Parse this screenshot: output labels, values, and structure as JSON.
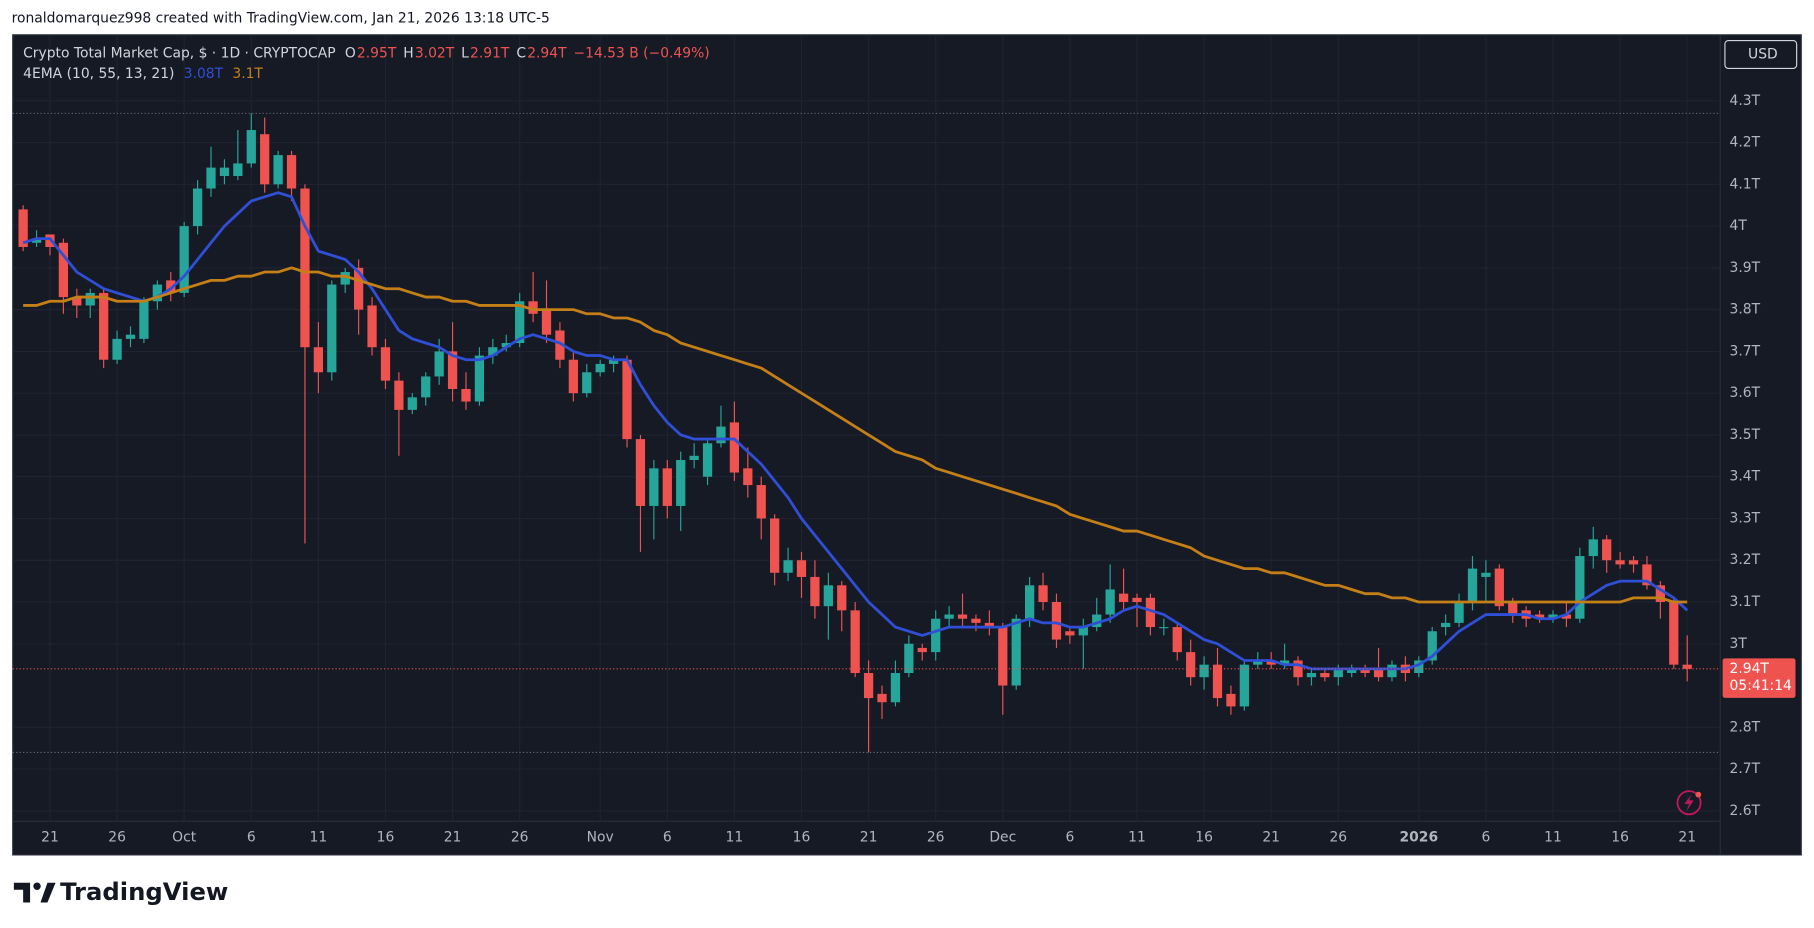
{
  "attribution": "ronaldomarquez998 created with TradingView.com, Jan 21, 2026 13:18 UTC-5",
  "footer_brand": "TradingView",
  "chart_data": {
    "type": "candlestick",
    "symbol": "Crypto Total Market Cap, $ · 1D · CRYPTOCAP",
    "ohlc_legend": [
      {
        "key": "O",
        "value": "2.95T"
      },
      {
        "key": "H",
        "value": "3.02T"
      },
      {
        "key": "L",
        "value": "2.91T"
      },
      {
        "key": "C",
        "value": "2.94T"
      }
    ],
    "change": "−14.53 B (−0.49%)",
    "currency": "USD",
    "last_price_label": "2.94T",
    "countdown": "05:41:14",
    "up_color": "#26a69a",
    "down_color": "#ef5350",
    "grid": true,
    "ylim": [
      2.575,
      4.458
    ],
    "yticks": [
      {
        "value": 2.6,
        "label": "2.6T"
      },
      {
        "value": 2.7,
        "label": "2.7T"
      },
      {
        "value": 2.8,
        "label": "2.8T"
      },
      {
        "value": 3,
        "label": "3T"
      },
      {
        "value": 3.1,
        "label": "3.1T"
      },
      {
        "value": 3.2,
        "label": "3.2T"
      },
      {
        "value": 3.3,
        "label": "3.3T"
      },
      {
        "value": 3.4,
        "label": "3.4T"
      },
      {
        "value": 3.5,
        "label": "3.5T"
      },
      {
        "value": 3.6,
        "label": "3.6T"
      },
      {
        "value": 3.7,
        "label": "3.7T"
      },
      {
        "value": 3.8,
        "label": "3.8T"
      },
      {
        "value": 3.9,
        "label": "3.9T"
      },
      {
        "value": 4,
        "label": "4T"
      },
      {
        "value": 4.1,
        "label": "4.1T"
      },
      {
        "value": 4.2,
        "label": "4.2T"
      },
      {
        "value": 4.3,
        "label": "4.3T"
      }
    ],
    "categories": [
      null,
      null,
      "21",
      null,
      null,
      null,
      null,
      "26",
      null,
      null,
      null,
      null,
      "Oct",
      null,
      null,
      null,
      null,
      "6",
      null,
      null,
      null,
      null,
      "11",
      null,
      null,
      null,
      null,
      "16",
      null,
      null,
      null,
      null,
      "21",
      null,
      null,
      null,
      null,
      "26",
      null,
      null,
      null,
      null,
      null,
      "Nov",
      null,
      null,
      null,
      null,
      "6",
      null,
      null,
      null,
      null,
      "11",
      null,
      null,
      null,
      null,
      "16",
      null,
      null,
      null,
      null,
      "21",
      null,
      null,
      null,
      null,
      "26",
      null,
      null,
      null,
      null,
      "Dec",
      null,
      null,
      null,
      null,
      "6",
      null,
      null,
      null,
      null,
      "11",
      null,
      null,
      null,
      null,
      "16",
      null,
      null,
      null,
      null,
      "21",
      null,
      null,
      null,
      null,
      "26",
      null,
      null,
      null,
      null,
      null,
      "2026",
      null,
      null,
      null,
      null,
      "6",
      null,
      null,
      null,
      null,
      "11",
      null,
      null,
      null,
      null,
      "16",
      null,
      null,
      null,
      null,
      "21"
    ],
    "ohlc": [
      [
        4.04,
        4.05,
        3.94,
        3.95
      ],
      [
        3.96,
        3.99,
        3.95,
        3.97
      ],
      [
        3.98,
        3.98,
        3.93,
        3.95
      ],
      [
        3.96,
        3.97,
        3.79,
        3.83
      ],
      [
        3.83,
        3.85,
        3.78,
        3.81
      ],
      [
        3.81,
        3.85,
        3.78,
        3.84
      ],
      [
        3.84,
        3.85,
        3.66,
        3.68
      ],
      [
        3.68,
        3.75,
        3.67,
        3.73
      ],
      [
        3.73,
        3.76,
        3.71,
        3.74
      ],
      [
        3.73,
        3.83,
        3.72,
        3.82
      ],
      [
        3.82,
        3.87,
        3.8,
        3.86
      ],
      [
        3.87,
        3.89,
        3.82,
        3.84
      ],
      [
        3.84,
        4.01,
        3.83,
        4.0
      ],
      [
        4.0,
        4.11,
        3.98,
        4.09
      ],
      [
        4.09,
        4.19,
        4.07,
        4.14
      ],
      [
        4.12,
        4.16,
        4.1,
        4.14
      ],
      [
        4.12,
        4.23,
        4.11,
        4.15
      ],
      [
        4.15,
        4.27,
        4.14,
        4.23
      ],
      [
        4.22,
        4.26,
        4.08,
        4.1
      ],
      [
        4.1,
        4.18,
        4.09,
        4.17
      ],
      [
        4.17,
        4.18,
        4.06,
        4.09
      ],
      [
        4.09,
        4.1,
        3.24,
        3.71
      ],
      [
        3.71,
        3.77,
        3.6,
        3.65
      ],
      [
        3.65,
        3.87,
        3.63,
        3.86
      ],
      [
        3.86,
        3.9,
        3.84,
        3.89
      ],
      [
        3.9,
        3.92,
        3.74,
        3.8
      ],
      [
        3.81,
        3.83,
        3.69,
        3.71
      ],
      [
        3.71,
        3.73,
        3.61,
        3.63
      ],
      [
        3.63,
        3.65,
        3.45,
        3.56
      ],
      [
        3.56,
        3.6,
        3.55,
        3.59
      ],
      [
        3.59,
        3.65,
        3.57,
        3.64
      ],
      [
        3.64,
        3.73,
        3.62,
        3.7
      ],
      [
        3.7,
        3.77,
        3.58,
        3.61
      ],
      [
        3.61,
        3.65,
        3.56,
        3.58
      ],
      [
        3.58,
        3.71,
        3.57,
        3.69
      ],
      [
        3.69,
        3.73,
        3.67,
        3.71
      ],
      [
        3.71,
        3.74,
        3.7,
        3.72
      ],
      [
        3.72,
        3.84,
        3.71,
        3.82
      ],
      [
        3.82,
        3.89,
        3.77,
        3.79
      ],
      [
        3.8,
        3.87,
        3.72,
        3.74
      ],
      [
        3.75,
        3.77,
        3.66,
        3.68
      ],
      [
        3.68,
        3.7,
        3.58,
        3.6
      ],
      [
        3.6,
        3.67,
        3.59,
        3.65
      ],
      [
        3.65,
        3.68,
        3.64,
        3.67
      ],
      [
        3.67,
        3.69,
        3.65,
        3.68
      ],
      [
        3.68,
        3.69,
        3.47,
        3.49
      ],
      [
        3.49,
        3.5,
        3.22,
        3.33
      ],
      [
        3.33,
        3.44,
        3.25,
        3.42
      ],
      [
        3.42,
        3.44,
        3.3,
        3.33
      ],
      [
        3.33,
        3.46,
        3.27,
        3.44
      ],
      [
        3.44,
        3.48,
        3.42,
        3.45
      ],
      [
        3.4,
        3.49,
        3.38,
        3.48
      ],
      [
        3.48,
        3.57,
        3.47,
        3.52
      ],
      [
        3.53,
        3.58,
        3.39,
        3.41
      ],
      [
        3.42,
        3.47,
        3.35,
        3.38
      ],
      [
        3.38,
        3.4,
        3.25,
        3.3
      ],
      [
        3.3,
        3.31,
        3.14,
        3.17
      ],
      [
        3.17,
        3.23,
        3.15,
        3.2
      ],
      [
        3.2,
        3.22,
        3.11,
        3.16
      ],
      [
        3.16,
        3.2,
        3.06,
        3.09
      ],
      [
        3.09,
        3.17,
        3.01,
        3.14
      ],
      [
        3.14,
        3.15,
        3.03,
        3.08
      ],
      [
        3.08,
        3.1,
        2.92,
        2.93
      ],
      [
        2.93,
        2.96,
        2.74,
        2.87
      ],
      [
        2.88,
        2.9,
        2.82,
        2.86
      ],
      [
        2.86,
        2.96,
        2.85,
        2.93
      ],
      [
        2.93,
        3.02,
        2.92,
        3.0
      ],
      [
        2.99,
        3.0,
        2.96,
        2.98
      ],
      [
        2.98,
        3.08,
        2.96,
        3.06
      ],
      [
        3.06,
        3.09,
        3.04,
        3.07
      ],
      [
        3.07,
        3.12,
        3.04,
        3.06
      ],
      [
        3.06,
        3.07,
        3.03,
        3.05
      ],
      [
        3.05,
        3.08,
        3.02,
        3.04
      ],
      [
        3.04,
        3.05,
        2.83,
        2.9
      ],
      [
        2.9,
        3.07,
        2.89,
        3.06
      ],
      [
        3.06,
        3.16,
        3.04,
        3.14
      ],
      [
        3.14,
        3.17,
        3.08,
        3.1
      ],
      [
        3.1,
        3.12,
        2.99,
        3.01
      ],
      [
        3.03,
        3.04,
        3.0,
        3.02
      ],
      [
        3.02,
        3.06,
        2.94,
        3.04
      ],
      [
        3.04,
        3.11,
        3.03,
        3.07
      ],
      [
        3.07,
        3.19,
        3.05,
        3.13
      ],
      [
        3.12,
        3.18,
        3.08,
        3.1
      ],
      [
        3.11,
        3.12,
        3.04,
        3.1
      ],
      [
        3.11,
        3.12,
        3.02,
        3.04
      ],
      [
        3.04,
        3.06,
        3.02,
        3.04
      ],
      [
        3.04,
        3.05,
        2.96,
        2.98
      ],
      [
        2.98,
        3.01,
        2.9,
        2.92
      ],
      [
        2.92,
        2.97,
        2.89,
        2.95
      ],
      [
        2.95,
        2.99,
        2.85,
        2.87
      ],
      [
        2.88,
        2.9,
        2.83,
        2.85
      ],
      [
        2.85,
        2.96,
        2.84,
        2.95
      ],
      [
        2.95,
        2.98,
        2.94,
        2.96
      ],
      [
        2.96,
        2.98,
        2.94,
        2.95
      ],
      [
        2.95,
        3.0,
        2.94,
        2.96
      ],
      [
        2.96,
        2.97,
        2.9,
        2.92
      ],
      [
        2.92,
        2.94,
        2.9,
        2.93
      ],
      [
        2.93,
        2.94,
        2.91,
        2.92
      ],
      [
        2.92,
        2.95,
        2.9,
        2.94
      ],
      [
        2.93,
        2.95,
        2.92,
        2.94
      ],
      [
        2.94,
        2.95,
        2.92,
        2.93
      ],
      [
        2.94,
        2.99,
        2.91,
        2.92
      ],
      [
        2.92,
        2.96,
        2.91,
        2.95
      ],
      [
        2.95,
        2.97,
        2.91,
        2.93
      ],
      [
        2.93,
        2.97,
        2.92,
        2.96
      ],
      [
        2.96,
        3.04,
        2.95,
        3.03
      ],
      [
        3.04,
        3.07,
        3.02,
        3.05
      ],
      [
        3.05,
        3.12,
        3.04,
        3.1
      ],
      [
        3.1,
        3.21,
        3.08,
        3.18
      ],
      [
        3.16,
        3.2,
        3.1,
        3.17
      ],
      [
        3.18,
        3.19,
        3.08,
        3.09
      ],
      [
        3.1,
        3.11,
        3.05,
        3.07
      ],
      [
        3.08,
        3.09,
        3.04,
        3.06
      ],
      [
        3.07,
        3.08,
        3.05,
        3.06
      ],
      [
        3.06,
        3.08,
        3.05,
        3.07
      ],
      [
        3.07,
        3.1,
        3.04,
        3.06
      ],
      [
        3.06,
        3.23,
        3.05,
        3.21
      ],
      [
        3.21,
        3.28,
        3.18,
        3.25
      ],
      [
        3.25,
        3.26,
        3.17,
        3.2
      ],
      [
        3.2,
        3.22,
        3.18,
        3.19
      ],
      [
        3.2,
        3.21,
        3.17,
        3.19
      ],
      [
        3.19,
        3.21,
        3.13,
        3.14
      ],
      [
        3.14,
        3.15,
        3.06,
        3.1
      ],
      [
        3.1,
        3.11,
        2.94,
        2.95
      ],
      [
        2.95,
        3.02,
        2.91,
        2.94
      ]
    ],
    "indicator": {
      "label": "4EMA (10, 55, 13, 21)",
      "lines": [
        {
          "color": "#2f4fd6",
          "last_label": "3.08T",
          "values": [
            3.96,
            3.97,
            3.97,
            3.93,
            3.89,
            3.87,
            3.85,
            3.84,
            3.83,
            3.82,
            3.83,
            3.85,
            3.88,
            3.92,
            3.96,
            4.0,
            4.03,
            4.06,
            4.07,
            4.08,
            4.07,
            4.0,
            3.94,
            3.93,
            3.92,
            3.89,
            3.85,
            3.8,
            3.75,
            3.73,
            3.72,
            3.71,
            3.69,
            3.68,
            3.68,
            3.69,
            3.71,
            3.73,
            3.74,
            3.73,
            3.72,
            3.7,
            3.69,
            3.69,
            3.68,
            3.68,
            3.62,
            3.57,
            3.53,
            3.5,
            3.49,
            3.49,
            3.49,
            3.49,
            3.46,
            3.43,
            3.39,
            3.35,
            3.3,
            3.26,
            3.22,
            3.18,
            3.14,
            3.1,
            3.07,
            3.04,
            3.03,
            3.02,
            3.03,
            3.04,
            3.04,
            3.04,
            3.04,
            3.04,
            3.05,
            3.06,
            3.05,
            3.05,
            3.04,
            3.04,
            3.05,
            3.06,
            3.08,
            3.09,
            3.08,
            3.07,
            3.05,
            3.03,
            3.01,
            3.0,
            2.98,
            2.96,
            2.96,
            2.96,
            2.95,
            2.95,
            2.94,
            2.94,
            2.94,
            2.94,
            2.94,
            2.94,
            2.94,
            2.94,
            2.95,
            2.97,
            3.0,
            3.03,
            3.05,
            3.07,
            3.07,
            3.07,
            3.07,
            3.06,
            3.06,
            3.07,
            3.1,
            3.12,
            3.14,
            3.15,
            3.15,
            3.15,
            3.13,
            3.11,
            3.08
          ]
        },
        {
          "color": "#c47f17",
          "last_label": "3.1T",
          "values": [
            3.81,
            3.81,
            3.82,
            3.82,
            3.83,
            3.83,
            3.83,
            3.82,
            3.82,
            3.82,
            3.83,
            3.84,
            3.85,
            3.86,
            3.87,
            3.87,
            3.88,
            3.88,
            3.89,
            3.89,
            3.9,
            3.89,
            3.89,
            3.88,
            3.88,
            3.87,
            3.86,
            3.85,
            3.85,
            3.84,
            3.83,
            3.83,
            3.82,
            3.82,
            3.81,
            3.81,
            3.81,
            3.81,
            3.8,
            3.8,
            3.8,
            3.8,
            3.79,
            3.79,
            3.78,
            3.78,
            3.77,
            3.75,
            3.74,
            3.72,
            3.71,
            3.7,
            3.69,
            3.68,
            3.67,
            3.66,
            3.64,
            3.62,
            3.6,
            3.58,
            3.56,
            3.54,
            3.52,
            3.5,
            3.48,
            3.46,
            3.45,
            3.44,
            3.42,
            3.41,
            3.4,
            3.39,
            3.38,
            3.37,
            3.36,
            3.35,
            3.34,
            3.33,
            3.31,
            3.3,
            3.29,
            3.28,
            3.27,
            3.27,
            3.26,
            3.25,
            3.24,
            3.23,
            3.21,
            3.2,
            3.19,
            3.18,
            3.18,
            3.17,
            3.17,
            3.16,
            3.15,
            3.14,
            3.14,
            3.13,
            3.12,
            3.12,
            3.11,
            3.11,
            3.1,
            3.1,
            3.1,
            3.1,
            3.1,
            3.1,
            3.1,
            3.1,
            3.1,
            3.1,
            3.1,
            3.1,
            3.1,
            3.1,
            3.1,
            3.1,
            3.11,
            3.11,
            3.11,
            3.1,
            3.1
          ]
        }
      ]
    }
  }
}
